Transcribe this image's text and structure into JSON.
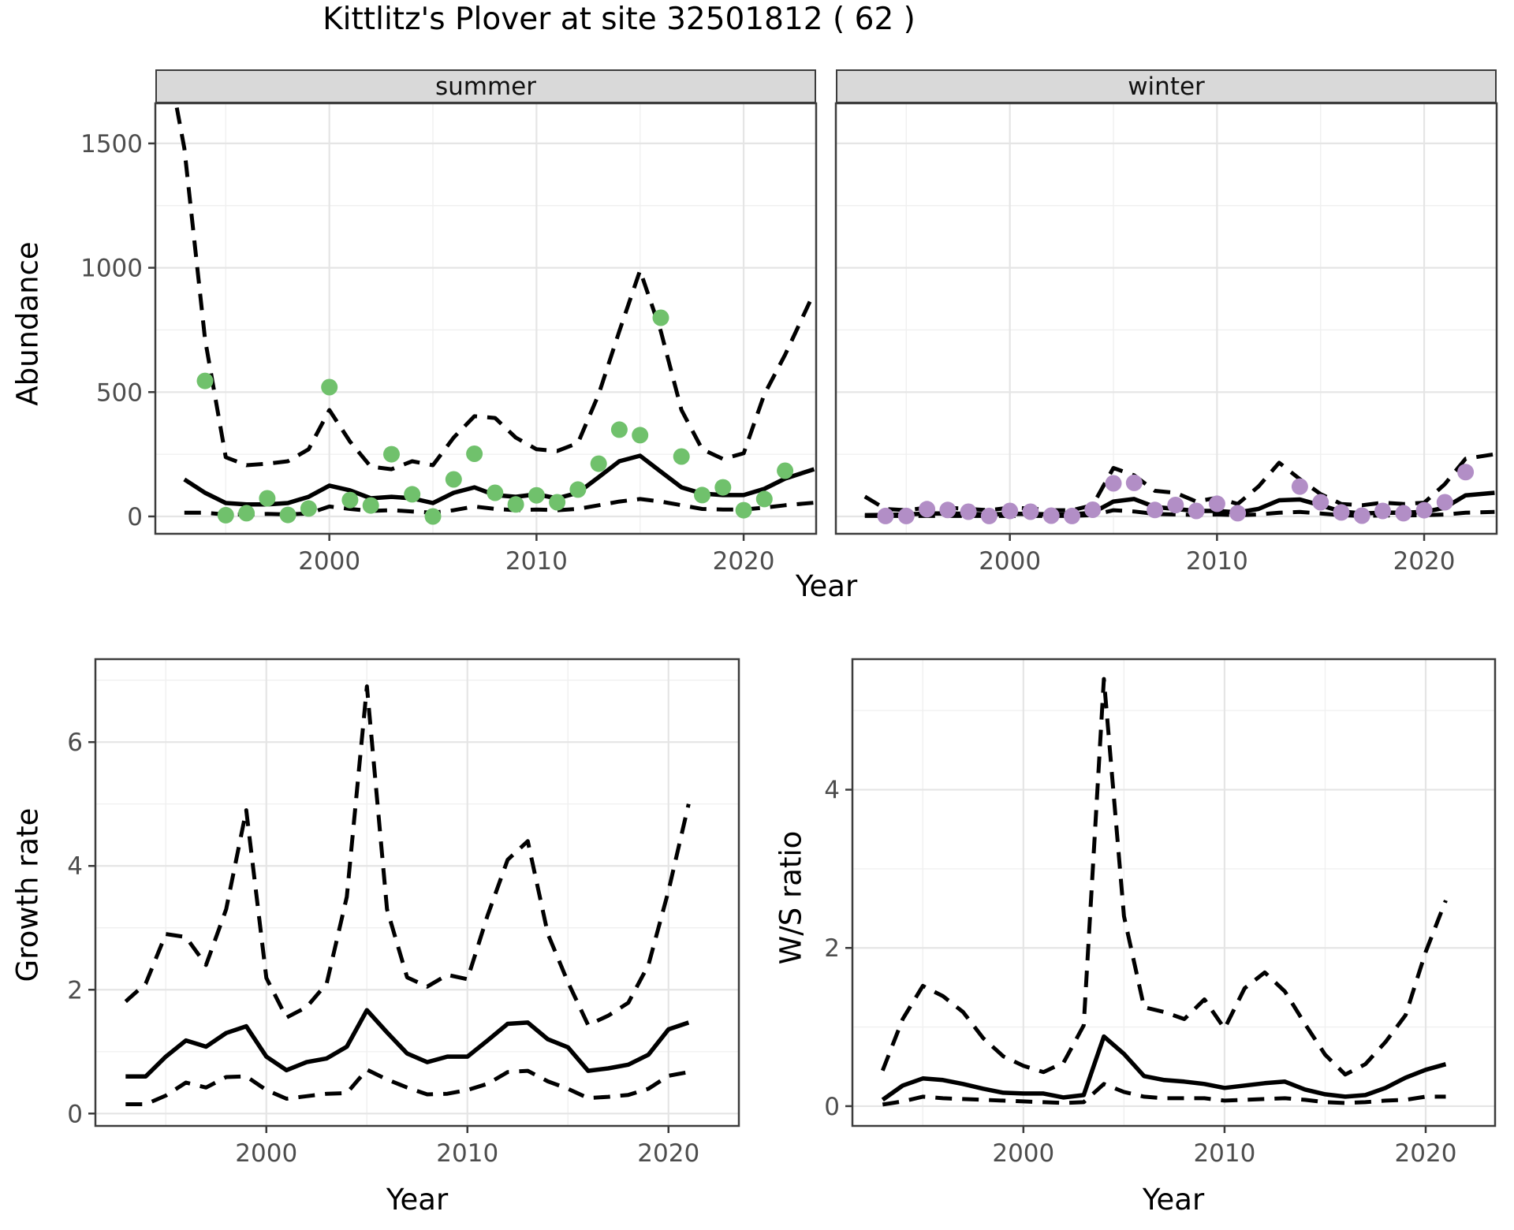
{
  "title": "Kittlitz's Plover at site 32501812 ( 62 )",
  "axis_labels": {
    "x": "Year",
    "abundance": "Abundance",
    "growth": "Growth rate",
    "ws": "W/S ratio"
  },
  "facets": {
    "summer": "summer",
    "winter": "winter"
  },
  "colors": {
    "summer_point": "#70c16c",
    "winter_point": "#b28ec6",
    "line": "#000000",
    "strip_bg": "#d9d9d9",
    "grid_major": "#e5e5e5",
    "grid_minor": "#f0f0f0",
    "panel_border": "#3c3c3c",
    "tick_text": "#4d4d4d"
  },
  "chart_data": [
    {
      "id": "abundance-summer",
      "type": "line",
      "facet": "summer",
      "ylabel": "Abundance",
      "xlabel": "Year",
      "xticks": [
        2000,
        2010,
        2020
      ],
      "xminor": [
        1995,
        2005,
        2015
      ],
      "yticks": [
        0,
        500,
        1000,
        1500
      ],
      "yminor": [
        250,
        750,
        1250
      ],
      "ylim": [
        0,
        1500
      ],
      "series": [
        {
          "name": "median",
          "style": "solid",
          "x": [
            1993,
            1994,
            1995,
            1996,
            1997,
            1998,
            1999,
            2000,
            2001,
            2002,
            2003,
            2004,
            2005,
            2006,
            2007,
            2008,
            2009,
            2010,
            2011,
            2012,
            2013,
            2014,
            2015,
            2016,
            2017,
            2018,
            2019,
            2020,
            2021,
            2022,
            2023.4
          ],
          "y": [
            149,
            95,
            54,
            48,
            48,
            54,
            79,
            124,
            105,
            73,
            79,
            73,
            54,
            95,
            117,
            86,
            79,
            89,
            73,
            95,
            158,
            222,
            244,
            180,
            117,
            92,
            86,
            86,
            111,
            152,
            190
          ]
        },
        {
          "name": "upper_ci",
          "style": "dashed",
          "x": [
            1992.4,
            1993,
            1994,
            1995,
            1996,
            1997,
            1998,
            1999,
            2000,
            2001,
            2002,
            2003,
            2004,
            2005,
            2006,
            2007,
            2008,
            2009,
            2010,
            2011,
            2012,
            2013,
            2014,
            2015,
            2016,
            2017,
            2018,
            2019,
            2020,
            2021,
            2022,
            2023.4
          ],
          "y": [
            1750,
            1480,
            713,
            238,
            206,
            212,
            222,
            270,
            428,
            301,
            200,
            190,
            222,
            206,
            317,
            403,
            396,
            317,
            270,
            263,
            295,
            491,
            745,
            989,
            745,
            428,
            270,
            231,
            254,
            491,
            650,
            900
          ]
        },
        {
          "name": "lower_ci",
          "style": "dashed",
          "x": [
            1993,
            1994,
            1995,
            1996,
            1997,
            1998,
            1999,
            2000,
            2001,
            2002,
            2003,
            2004,
            2005,
            2006,
            2007,
            2008,
            2009,
            2010,
            2011,
            2012,
            2013,
            2014,
            2015,
            2016,
            2017,
            2018,
            2019,
            2020,
            2021,
            2022,
            2023.4
          ],
          "y": [
            15,
            15,
            8,
            8,
            10,
            8,
            12,
            40,
            30,
            22,
            25,
            20,
            15,
            25,
            40,
            30,
            25,
            28,
            25,
            30,
            45,
            60,
            70,
            60,
            45,
            30,
            28,
            28,
            35,
            45,
            55
          ]
        }
      ],
      "points": {
        "x": [
          1994,
          1995,
          1996,
          1997,
          1998,
          1999,
          2000,
          2001,
          2002,
          2003,
          2004,
          2005,
          2006,
          2007,
          2008,
          2009,
          2010,
          2011,
          2012,
          2013,
          2014,
          2015,
          2016,
          2017,
          2018,
          2019,
          2020,
          2021,
          2022
        ],
        "y": [
          545,
          5,
          13,
          73,
          6,
          32,
          520,
          66,
          44,
          250,
          89,
          0,
          149,
          252,
          95,
          48,
          85,
          57,
          108,
          212,
          349,
          327,
          799,
          241,
          86,
          117,
          25,
          70,
          184
        ]
      }
    },
    {
      "id": "abundance-winter",
      "type": "line",
      "facet": "winter",
      "ylabel": "Abundance",
      "xlabel": "Year",
      "xticks": [
        2000,
        2010,
        2020
      ],
      "xminor": [
        1995,
        2005,
        2015
      ],
      "yticks": [
        0,
        500,
        1000,
        1500
      ],
      "yminor": [
        250,
        750,
        1250
      ],
      "ylim": [
        0,
        1500
      ],
      "series": [
        {
          "name": "median",
          "style": "solid",
          "x": [
            1993,
            1994,
            1995,
            1996,
            1997,
            1998,
            1999,
            2000,
            2001,
            2002,
            2003,
            2004,
            2005,
            2006,
            2007,
            2008,
            2009,
            2010,
            2011,
            2012,
            2013,
            2014,
            2015,
            2016,
            2017,
            2018,
            2019,
            2020,
            2021,
            2022,
            2023.4
          ],
          "y": [
            5,
            6,
            8,
            12,
            12,
            10,
            8,
            10,
            10,
            8,
            8,
            15,
            60,
            70,
            38,
            30,
            22,
            22,
            16,
            30,
            65,
            68,
            45,
            20,
            12,
            15,
            15,
            18,
            35,
            85,
            95
          ]
        },
        {
          "name": "upper_ci",
          "style": "dashed",
          "x": [
            1993,
            1994,
            1995,
            1996,
            1997,
            1998,
            1999,
            2000,
            2001,
            2002,
            2003,
            2004,
            2005,
            2006,
            2007,
            2008,
            2009,
            2010,
            2011,
            2012,
            2013,
            2014,
            2015,
            2016,
            2017,
            2018,
            2019,
            2020,
            2021,
            2022,
            2023.4
          ],
          "y": [
            80,
            30,
            25,
            35,
            35,
            30,
            25,
            35,
            32,
            25,
            25,
            45,
            195,
            165,
            103,
            95,
            60,
            75,
            50,
            120,
            216,
            150,
            90,
            50,
            45,
            55,
            50,
            55,
            130,
            232,
            250
          ]
        },
        {
          "name": "lower_ci",
          "style": "dashed",
          "x": [
            1993,
            1994,
            1995,
            1996,
            1997,
            1998,
            1999,
            2000,
            2001,
            2002,
            2003,
            2004,
            2005,
            2006,
            2007,
            2008,
            2009,
            2010,
            2011,
            2012,
            2013,
            2014,
            2015,
            2016,
            2017,
            2018,
            2019,
            2020,
            2021,
            2022,
            2023.4
          ],
          "y": [
            2,
            2,
            2,
            2,
            2,
            2,
            2,
            2,
            2,
            2,
            2,
            5,
            25,
            20,
            10,
            8,
            6,
            8,
            5,
            8,
            15,
            18,
            12,
            5,
            2,
            4,
            4,
            5,
            8,
            15,
            18
          ]
        }
      ],
      "points": {
        "x": [
          1994,
          1995,
          1996,
          1997,
          1998,
          1999,
          2000,
          2001,
          2002,
          2003,
          2004,
          2005,
          2006,
          2007,
          2008,
          2009,
          2010,
          2011,
          2014,
          2015,
          2016,
          2017,
          2018,
          2019,
          2020,
          2021,
          2022
        ],
        "y": [
          2,
          2,
          29,
          26,
          19,
          2,
          22,
          19,
          3,
          2,
          27,
          133,
          135,
          26,
          46,
          22,
          51,
          13,
          120,
          57,
          16,
          3,
          22,
          13,
          25,
          57,
          178
        ]
      }
    },
    {
      "id": "growth-rate",
      "type": "line",
      "ylabel": "Growth rate",
      "xlabel": "Year",
      "xticks": [
        2000,
        2010,
        2020
      ],
      "xminor": [
        1995,
        2005,
        2015
      ],
      "yticks": [
        0,
        2,
        4,
        6
      ],
      "yminor": [
        1,
        3,
        5,
        7
      ],
      "ylim": [
        0,
        7
      ],
      "series": [
        {
          "name": "median",
          "style": "solid",
          "x": [
            1993,
            1994,
            1995,
            1996,
            1997,
            1998,
            1999,
            2000,
            2001,
            2002,
            2003,
            2004,
            2005,
            2006,
            2007,
            2008,
            2009,
            2010,
            2011,
            2012,
            2013,
            2014,
            2015,
            2016,
            2017,
            2018,
            2019,
            2020,
            2021
          ],
          "y": [
            0.6,
            0.6,
            0.92,
            1.18,
            1.08,
            1.3,
            1.41,
            0.92,
            0.7,
            0.83,
            0.89,
            1.08,
            1.67,
            1.31,
            0.97,
            0.83,
            0.92,
            0.92,
            1.18,
            1.45,
            1.47,
            1.2,
            1.07,
            0.69,
            0.73,
            0.79,
            0.95,
            1.36,
            1.47
          ]
        },
        {
          "name": "upper_ci",
          "style": "dashed",
          "x": [
            1993,
            1994,
            1995,
            1996,
            1997,
            1998,
            1999,
            2000,
            2001,
            2002,
            2003,
            2004,
            2005,
            2006,
            2007,
            2008,
            2009,
            2010,
            2011,
            2012,
            2013,
            2014,
            2015,
            2016,
            2017,
            2018,
            2019,
            2020,
            2021
          ],
          "y": [
            1.81,
            2.1,
            2.9,
            2.85,
            2.4,
            3.3,
            4.9,
            2.19,
            1.55,
            1.72,
            2.1,
            3.5,
            6.9,
            3.3,
            2.2,
            2.05,
            2.24,
            2.17,
            3.2,
            4.1,
            4.4,
            2.9,
            2.12,
            1.43,
            1.58,
            1.79,
            2.4,
            3.6,
            5.0
          ]
        },
        {
          "name": "lower_ci",
          "style": "dashed",
          "x": [
            1993,
            1994,
            1995,
            1996,
            1997,
            1998,
            1999,
            2000,
            2001,
            2002,
            2003,
            2004,
            2005,
            2006,
            2007,
            2008,
            2009,
            2010,
            2011,
            2012,
            2013,
            2014,
            2015,
            2016,
            2017,
            2018,
            2019,
            2020,
            2021
          ],
          "y": [
            0.15,
            0.15,
            0.29,
            0.5,
            0.42,
            0.59,
            0.6,
            0.38,
            0.24,
            0.28,
            0.32,
            0.33,
            0.71,
            0.55,
            0.42,
            0.31,
            0.32,
            0.38,
            0.48,
            0.67,
            0.69,
            0.52,
            0.4,
            0.25,
            0.27,
            0.3,
            0.4,
            0.61,
            0.67
          ]
        }
      ],
      "points": null
    },
    {
      "id": "ws-ratio",
      "type": "line",
      "ylabel": "W/S ratio",
      "xlabel": "Year",
      "xticks": [
        2000,
        2010,
        2020
      ],
      "xminor": [
        1995,
        2005,
        2015
      ],
      "yticks": [
        0,
        2,
        4
      ],
      "yminor": [
        1,
        3,
        5
      ],
      "ylim": [
        0,
        5.4
      ],
      "series": [
        {
          "name": "median",
          "style": "solid",
          "x": [
            1993,
            1994,
            1995,
            1996,
            1997,
            1998,
            1999,
            2000,
            2001,
            2002,
            2003,
            2004,
            2005,
            2006,
            2007,
            2008,
            2009,
            2010,
            2011,
            2012,
            2013,
            2014,
            2015,
            2016,
            2017,
            2018,
            2019,
            2020,
            2021
          ],
          "y": [
            0.08,
            0.26,
            0.35,
            0.33,
            0.28,
            0.22,
            0.17,
            0.16,
            0.16,
            0.11,
            0.14,
            0.88,
            0.66,
            0.38,
            0.33,
            0.31,
            0.28,
            0.23,
            0.26,
            0.29,
            0.31,
            0.21,
            0.15,
            0.12,
            0.14,
            0.23,
            0.36,
            0.46,
            0.53
          ]
        },
        {
          "name": "upper_ci",
          "style": "dashed",
          "x": [
            1993,
            1994,
            1995,
            1996,
            1997,
            1998,
            1999,
            2000,
            2001,
            2002,
            2003,
            2004,
            2005,
            2006,
            2007,
            2008,
            2009,
            2010,
            2011,
            2012,
            2013,
            2014,
            2015,
            2016,
            2017,
            2018,
            2019,
            2020,
            2021
          ],
          "y": [
            0.45,
            1.1,
            1.52,
            1.39,
            1.19,
            0.86,
            0.63,
            0.51,
            0.43,
            0.55,
            1.02,
            5.4,
            2.4,
            1.25,
            1.19,
            1.1,
            1.35,
            0.98,
            1.49,
            1.69,
            1.45,
            1.04,
            0.65,
            0.4,
            0.53,
            0.81,
            1.15,
            1.95,
            2.6
          ]
        },
        {
          "name": "lower_ci",
          "style": "dashed",
          "x": [
            1993,
            1994,
            1995,
            1996,
            1997,
            1998,
            1999,
            2000,
            2001,
            2002,
            2003,
            2004,
            2005,
            2006,
            2007,
            2008,
            2009,
            2010,
            2011,
            2012,
            2013,
            2014,
            2015,
            2016,
            2017,
            2018,
            2019,
            2020,
            2021
          ],
          "y": [
            0.02,
            0.06,
            0.12,
            0.1,
            0.09,
            0.08,
            0.07,
            0.06,
            0.05,
            0.04,
            0.05,
            0.28,
            0.18,
            0.12,
            0.1,
            0.1,
            0.1,
            0.07,
            0.08,
            0.09,
            0.1,
            0.08,
            0.05,
            0.04,
            0.05,
            0.07,
            0.08,
            0.12,
            0.12
          ]
        }
      ],
      "points": null
    }
  ]
}
